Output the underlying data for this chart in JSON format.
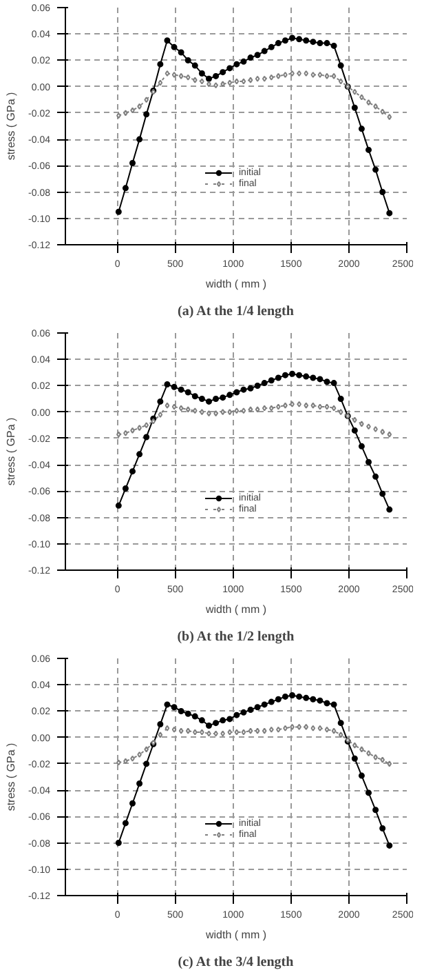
{
  "chart_data": [
    {
      "type": "line",
      "title": "(a) At the 1/4 length",
      "xlabel": "width ( mm )",
      "ylabel": "stress ( GPa )",
      "x": [
        10,
        70,
        130,
        190,
        250,
        310,
        370,
        430,
        490,
        550,
        610,
        670,
        730,
        790,
        850,
        910,
        970,
        1030,
        1090,
        1150,
        1210,
        1270,
        1330,
        1390,
        1450,
        1510,
        1570,
        1630,
        1690,
        1750,
        1810,
        1870,
        1930,
        1990,
        2050,
        2110,
        2170,
        2230,
        2290,
        2350
      ],
      "xlim": [
        -450,
        2500
      ],
      "xticks": [
        0,
        500,
        1000,
        1500,
        2000,
        2500
      ],
      "ylim": [
        -0.12,
        0.06
      ],
      "yticks": [
        {
          "value": 0.06,
          "label": "0.06"
        },
        {
          "value": 0.04,
          "label": "0.04"
        },
        {
          "value": 0.02,
          "label": "0.02"
        },
        {
          "value": 0,
          "label": "0.00"
        },
        {
          "value": -0.02,
          "label": "-0.02"
        },
        {
          "value": -0.04,
          "label": "-0.04"
        },
        {
          "value": -0.06,
          "label": "-0.06"
        },
        {
          "value": -0.08,
          "label": "-0.08"
        },
        {
          "value": -0.1,
          "label": "-0.10"
        },
        {
          "value": -0.12,
          "label": "-0.12"
        }
      ],
      "grid": true,
      "legend": "bottom",
      "series": [
        {
          "name": "initial",
          "color": "#000000",
          "marker": "circle",
          "line_style": "solid",
          "values": [
            -0.095,
            -0.077,
            -0.058,
            -0.04,
            -0.021,
            -0.003,
            0.017,
            0.035,
            0.03,
            0.026,
            0.02,
            0.016,
            0.01,
            0.006,
            0.008,
            0.011,
            0.014,
            0.017,
            0.019,
            0.022,
            0.024,
            0.027,
            0.03,
            0.033,
            0.035,
            0.037,
            0.036,
            0.035,
            0.034,
            0.033,
            0.033,
            0.031,
            0.016,
            0.0,
            -0.016,
            -0.032,
            -0.048,
            -0.063,
            -0.08,
            -0.096
          ]
        },
        {
          "name": "final",
          "color": "#808080",
          "marker": "diamond",
          "line_style": "dotted",
          "values": [
            -0.022,
            -0.02,
            -0.018,
            -0.015,
            -0.01,
            -0.004,
            0.003,
            0.01,
            0.009,
            0.008,
            0.007,
            0.005,
            0.004,
            0.002,
            0.001,
            0.002,
            0.003,
            0.004,
            0.004,
            0.005,
            0.006,
            0.006,
            0.007,
            0.008,
            0.009,
            0.01,
            0.01,
            0.01,
            0.009,
            0.009,
            0.008,
            0.008,
            0.004,
            0.0,
            -0.004,
            -0.008,
            -0.012,
            -0.015,
            -0.019,
            -0.023
          ]
        }
      ]
    },
    {
      "type": "line",
      "title": "(b) At the 1/2 length",
      "xlabel": "width ( mm )",
      "ylabel": "stress ( GPa )",
      "x": [
        10,
        70,
        130,
        190,
        250,
        310,
        370,
        430,
        490,
        550,
        610,
        670,
        730,
        790,
        850,
        910,
        970,
        1030,
        1090,
        1150,
        1210,
        1270,
        1330,
        1390,
        1450,
        1510,
        1570,
        1630,
        1690,
        1750,
        1810,
        1870,
        1930,
        1990,
        2050,
        2110,
        2170,
        2230,
        2290,
        2350
      ],
      "xlim": [
        -450,
        2500
      ],
      "xticks": [
        0,
        500,
        1000,
        1500,
        2000,
        2500
      ],
      "ylim": [
        -0.12,
        0.06
      ],
      "yticks": [
        {
          "value": 0.06,
          "label": "0.06"
        },
        {
          "value": 0.04,
          "label": "0.04"
        },
        {
          "value": 0.02,
          "label": "0.02"
        },
        {
          "value": 0,
          "label": "0.00"
        },
        {
          "value": -0.02,
          "label": "-0.02"
        },
        {
          "value": -0.04,
          "label": "-0.04"
        },
        {
          "value": -0.06,
          "label": "-0.06"
        },
        {
          "value": -0.08,
          "label": "-0.08"
        },
        {
          "value": -0.1,
          "label": "-0.10"
        },
        {
          "value": -0.12,
          "label": "-0.12"
        }
      ],
      "grid": true,
      "legend": "bottom",
      "series": [
        {
          "name": "initial",
          "color": "#000000",
          "marker": "circle",
          "line_style": "solid",
          "values": [
            -0.071,
            -0.058,
            -0.045,
            -0.032,
            -0.019,
            -0.005,
            0.008,
            0.021,
            0.019,
            0.017,
            0.015,
            0.012,
            0.01,
            0.008,
            0.01,
            0.011,
            0.013,
            0.015,
            0.017,
            0.018,
            0.02,
            0.022,
            0.024,
            0.026,
            0.028,
            0.029,
            0.028,
            0.027,
            0.026,
            0.025,
            0.023,
            0.022,
            0.01,
            -0.003,
            -0.014,
            -0.026,
            -0.038,
            -0.049,
            -0.062,
            -0.074
          ]
        },
        {
          "name": "final",
          "color": "#808080",
          "marker": "diamond",
          "line_style": "dotted",
          "values": [
            -0.017,
            -0.016,
            -0.014,
            -0.012,
            -0.01,
            -0.007,
            -0.002,
            0.005,
            0.004,
            0.003,
            0.002,
            0.001,
            0.0,
            -0.001,
            -0.001,
            0.0,
            0.0,
            0.001,
            0.001,
            0.002,
            0.002,
            0.003,
            0.003,
            0.004,
            0.005,
            0.006,
            0.006,
            0.005,
            0.005,
            0.004,
            0.004,
            0.003,
            0.0,
            -0.003,
            -0.006,
            -0.009,
            -0.011,
            -0.013,
            -0.015,
            -0.017
          ]
        }
      ]
    },
    {
      "type": "line",
      "title": "(c) At the 3/4 length",
      "xlabel": "width ( mm )",
      "ylabel": "stress ( GPa )",
      "x": [
        10,
        70,
        130,
        190,
        250,
        310,
        370,
        430,
        490,
        550,
        610,
        670,
        730,
        790,
        850,
        910,
        970,
        1030,
        1090,
        1150,
        1210,
        1270,
        1330,
        1390,
        1450,
        1510,
        1570,
        1630,
        1690,
        1750,
        1810,
        1870,
        1930,
        1990,
        2050,
        2110,
        2170,
        2230,
        2290,
        2350
      ],
      "xlim": [
        -450,
        2500
      ],
      "xticks": [
        0,
        500,
        1000,
        1500,
        2000,
        2500
      ],
      "ylim": [
        -0.12,
        0.06
      ],
      "yticks": [
        {
          "value": 0.06,
          "label": "0.06"
        },
        {
          "value": 0.04,
          "label": "0.04"
        },
        {
          "value": 0.02,
          "label": "0.02"
        },
        {
          "value": 0,
          "label": "0.00"
        },
        {
          "value": -0.02,
          "label": "-0.02"
        },
        {
          "value": -0.04,
          "label": "-0.04"
        },
        {
          "value": -0.06,
          "label": "-0.06"
        },
        {
          "value": -0.08,
          "label": "-0.08"
        },
        {
          "value": -0.1,
          "label": "-0.10"
        },
        {
          "value": -0.12,
          "label": "-0.12"
        }
      ],
      "grid": true,
      "legend": "bottom",
      "series": [
        {
          "name": "initial",
          "color": "#000000",
          "marker": "circle",
          "line_style": "solid",
          "values": [
            -0.08,
            -0.065,
            -0.05,
            -0.035,
            -0.02,
            -0.005,
            0.01,
            0.025,
            0.023,
            0.02,
            0.018,
            0.016,
            0.013,
            0.009,
            0.011,
            0.013,
            0.014,
            0.017,
            0.019,
            0.021,
            0.023,
            0.025,
            0.027,
            0.029,
            0.031,
            0.032,
            0.031,
            0.03,
            0.029,
            0.028,
            0.026,
            0.025,
            0.011,
            -0.003,
            -0.016,
            -0.029,
            -0.042,
            -0.055,
            -0.069,
            -0.082
          ]
        },
        {
          "name": "final",
          "color": "#808080",
          "marker": "diamond",
          "line_style": "dotted",
          "values": [
            -0.019,
            -0.018,
            -0.016,
            -0.013,
            -0.009,
            -0.004,
            0.002,
            0.007,
            0.006,
            0.005,
            0.005,
            0.004,
            0.004,
            0.003,
            0.003,
            0.003,
            0.004,
            0.004,
            0.004,
            0.005,
            0.005,
            0.005,
            0.006,
            0.006,
            0.007,
            0.008,
            0.008,
            0.008,
            0.007,
            0.007,
            0.006,
            0.005,
            0.002,
            -0.002,
            -0.006,
            -0.009,
            -0.012,
            -0.015,
            -0.017,
            -0.02
          ]
        }
      ]
    }
  ]
}
